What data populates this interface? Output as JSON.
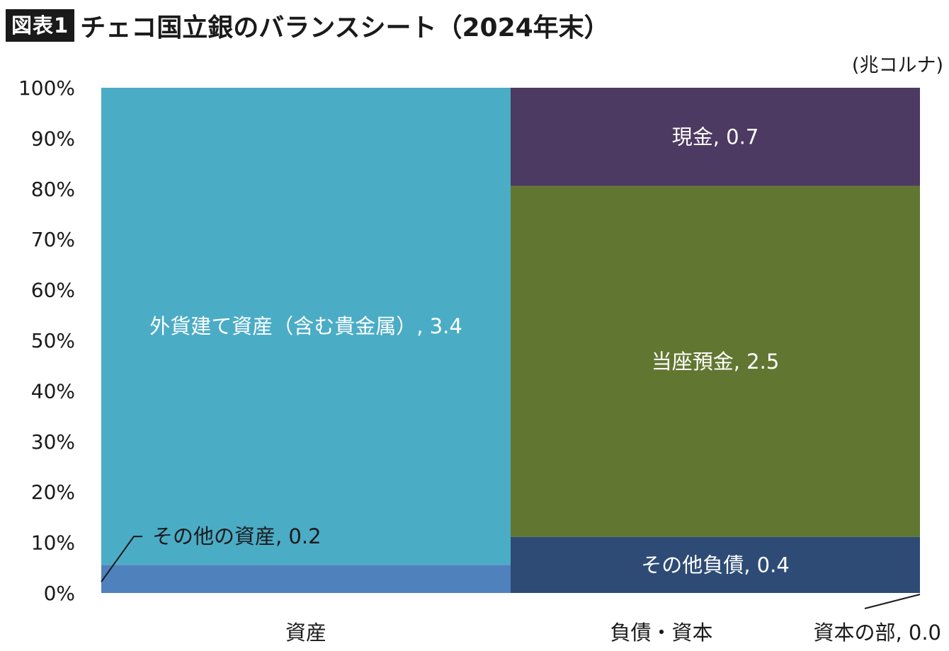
{
  "header": {
    "figure_label": "図表1",
    "title": "チェコ国立銀のバランスシート（2024年末）",
    "unit": "(兆コルナ)"
  },
  "chart_data": {
    "type": "bar",
    "stacked": "100%",
    "categories": [
      "資産",
      "負債・資本"
    ],
    "series": [
      {
        "name": "その他の資産",
        "category": "資産",
        "value": 0.2,
        "color": "#4f81bd",
        "label": "その他の資産, 0.2"
      },
      {
        "name": "外貨建て資産（含む貴金属）",
        "category": "資産",
        "value": 3.4,
        "color": "#4bacc6",
        "label": "外貨建て資産（含む貴金属）, 3.4"
      },
      {
        "name": "資本の部",
        "category": "負債・資本",
        "value": 0.0,
        "color": "#1f3864",
        "label": "資本の部, 0.0"
      },
      {
        "name": "その他負債",
        "category": "負債・資本",
        "value": 0.4,
        "color": "#2e4b76",
        "label": "その他負債, 0.4"
      },
      {
        "name": "当座預金",
        "category": "負債・資本",
        "value": 2.5,
        "color": "#617731",
        "label": "当座預金, 2.5"
      },
      {
        "name": "現金",
        "category": "負債・資本",
        "value": 0.7,
        "color": "#4d3a62",
        "label": "現金, 0.7"
      }
    ],
    "y_ticks": [
      "0%",
      "10%",
      "20%",
      "30%",
      "40%",
      "50%",
      "60%",
      "70%",
      "80%",
      "90%",
      "100%"
    ],
    "ylim": [
      0,
      100
    ],
    "grid": false,
    "legend": "none"
  }
}
